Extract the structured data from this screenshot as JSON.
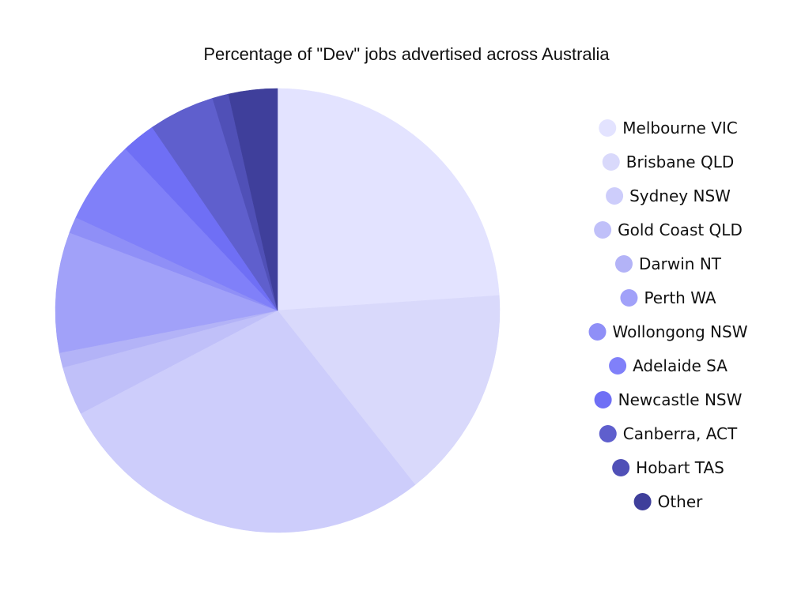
{
  "chart_data": {
    "type": "pie",
    "title": "Percentage of \"Dev\" jobs advertised across Australia",
    "start_angle_deg": 0,
    "direction": "clockwise",
    "legend_position": "right",
    "categories": [
      "Melbourne VIC",
      "Brisbane QLD",
      "Sydney NSW",
      "Gold Coast QLD",
      "Darwin NT",
      "Perth WA",
      "Wollongong NSW",
      "Adelaide SA",
      "Newcastle NSW",
      "Canberra, ACT",
      "Hobart TAS",
      "Other"
    ],
    "values": [
      24.3,
      15.7,
      28.4,
      3.6,
      1.1,
      8.9,
      1.2,
      6.2,
      2.5,
      4.9,
      1.2,
      3.6
    ],
    "colors": [
      "#e3e3ff",
      "#d9d9fb",
      "#cdcdfb",
      "#c0c0f9",
      "#b3b3f7",
      "#a1a1f9",
      "#8f8ff7",
      "#8080f9",
      "#6f6ff5",
      "#5f5fcd",
      "#5050b7",
      "#3f3f9b"
    ]
  }
}
